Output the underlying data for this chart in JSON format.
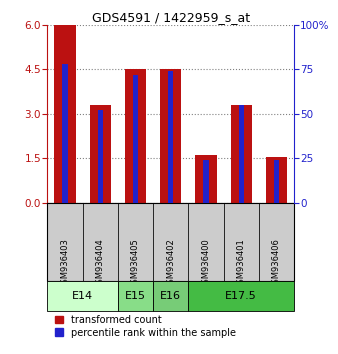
{
  "title": "GDS4591 / 1422959_s_at",
  "samples": [
    "GSM936403",
    "GSM936404",
    "GSM936405",
    "GSM936402",
    "GSM936400",
    "GSM936401",
    "GSM936406"
  ],
  "red_values": [
    6.0,
    3.3,
    4.5,
    4.5,
    1.6,
    3.3,
    1.55
  ],
  "blue_values_right": [
    78,
    52,
    72,
    74,
    24,
    55,
    24
  ],
  "age_groups": [
    {
      "label": "E14",
      "start": 0,
      "end": 2,
      "color": "#ccffcc"
    },
    {
      "label": "E15",
      "start": 2,
      "end": 3,
      "color": "#88dd88"
    },
    {
      "label": "E16",
      "start": 3,
      "end": 4,
      "color": "#77cc77"
    },
    {
      "label": "E17.5",
      "start": 4,
      "end": 7,
      "color": "#44bb44"
    }
  ],
  "ylim_left": [
    0,
    6
  ],
  "ylim_right": [
    0,
    100
  ],
  "yticks_left": [
    0,
    1.5,
    3,
    4.5,
    6
  ],
  "yticks_right": [
    0,
    25,
    50,
    75,
    100
  ],
  "red_color": "#bb1111",
  "blue_color": "#2222cc",
  "bg_color": "#cccccc",
  "legend_red": "transformed count",
  "legend_blue": "percentile rank within the sample"
}
